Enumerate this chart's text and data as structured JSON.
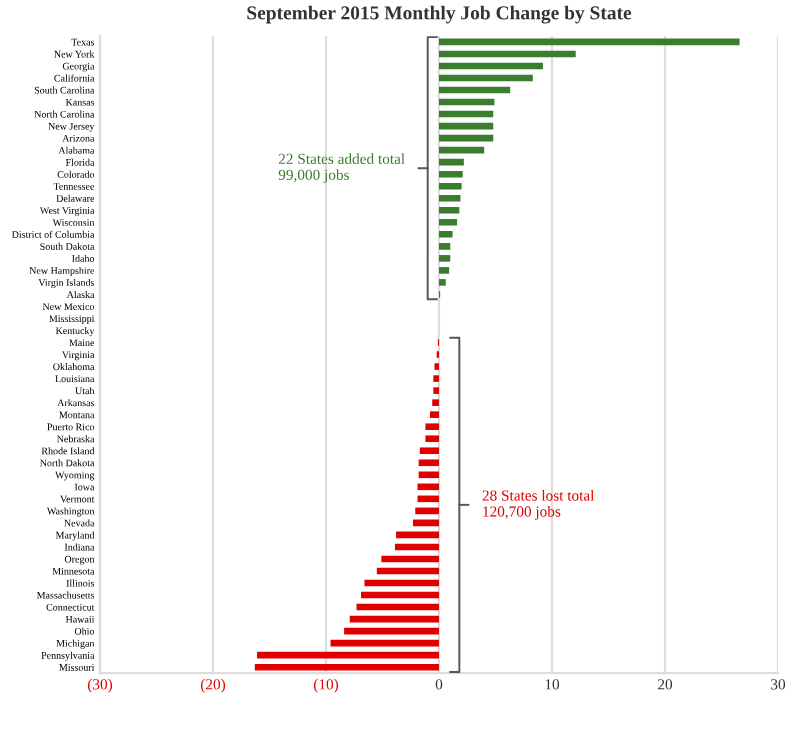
{
  "chart_data": {
    "type": "bar",
    "orientation": "horizontal",
    "title": "September 2015 Monthly Job Change by State",
    "categories": [
      "Texas",
      "New York",
      "Georgia",
      "California",
      "South Carolina",
      "Kansas",
      "North Carolina",
      "New Jersey",
      "Arizona",
      "Alabama",
      "Florida",
      "Colorado",
      "Tennessee",
      "Delaware",
      "West Virginia",
      "Wisconsin",
      "District of Columbia",
      "South Dakota",
      "Idaho",
      "New Hampshire",
      "Virgin Islands",
      "Alaska",
      "New Mexico",
      "Mississippi",
      "Kentucky",
      "Maine",
      "Virginia",
      "Oklahoma",
      "Louisiana",
      "Utah",
      "Arkansas",
      "Montana",
      "Puerto Rico",
      "Nebraska",
      "Rhode Island",
      "North Dakota",
      "Wyoming",
      "Iowa",
      "Vermont",
      "Washington",
      "Nevada",
      "Maryland",
      "Indiana",
      "Oregon",
      "Minnesota",
      "Illinois",
      "Massachusetts",
      "Connecticut",
      "Hawaii",
      "Ohio",
      "Michigan",
      "Pennsylvania",
      "Missouri"
    ],
    "values": [
      26.6,
      12.1,
      9.2,
      8.3,
      6.3,
      4.9,
      4.8,
      4.8,
      4.8,
      4.0,
      2.2,
      2.1,
      2.0,
      1.9,
      1.8,
      1.6,
      1.2,
      1.0,
      1.0,
      0.9,
      0.6,
      0.1,
      0,
      0,
      0,
      -0.1,
      -0.2,
      -0.4,
      -0.5,
      -0.5,
      -0.6,
      -0.8,
      -1.2,
      -1.2,
      -1.7,
      -1.8,
      -1.8,
      -1.9,
      -1.9,
      -2.1,
      -2.3,
      -3.8,
      -3.9,
      -5.1,
      -5.5,
      -6.6,
      -6.9,
      -7.3,
      -7.9,
      -8.4,
      -9.6,
      -16.1,
      -16.3
    ],
    "colors": [
      "#3b7d2e",
      "#3b7d2e",
      "#3b7d2e",
      "#3b7d2e",
      "#3b7d2e",
      "#3b7d2e",
      "#3b7d2e",
      "#3b7d2e",
      "#3b7d2e",
      "#3b7d2e",
      "#3b7d2e",
      "#3b7d2e",
      "#3b7d2e",
      "#3b7d2e",
      "#3b7d2e",
      "#3b7d2e",
      "#3b7d2e",
      "#3b7d2e",
      "#3b7d2e",
      "#3b7d2e",
      "#3b7d2e",
      "#3b7d2e",
      "#3b7d2e",
      "#3b7d2e",
      "#3b7d2e",
      "#e00000",
      "#e00000",
      "#e00000",
      "#e00000",
      "#e00000",
      "#e00000",
      "#e00000",
      "#e00000",
      "#e00000",
      "#e00000",
      "#e00000",
      "#e00000",
      "#e00000",
      "#e00000",
      "#e00000",
      "#e00000",
      "#e00000",
      "#e00000",
      "#e00000",
      "#e00000",
      "#e00000",
      "#e00000",
      "#e00000",
      "#e00000",
      "#e00000",
      "#e00000",
      "#e00000",
      "#e00000"
    ],
    "xlim": [
      -30,
      30
    ],
    "xticks": [
      {
        "value": -30,
        "label": "(30)"
      },
      {
        "value": -20,
        "label": "(20)"
      },
      {
        "value": -10,
        "label": "(10)"
      },
      0,
      10,
      20,
      30
    ],
    "grid": "x",
    "annotations": [
      "22 States added total\n99,000 jobs",
      "28 States lost total\n120,700 jobs"
    ]
  }
}
